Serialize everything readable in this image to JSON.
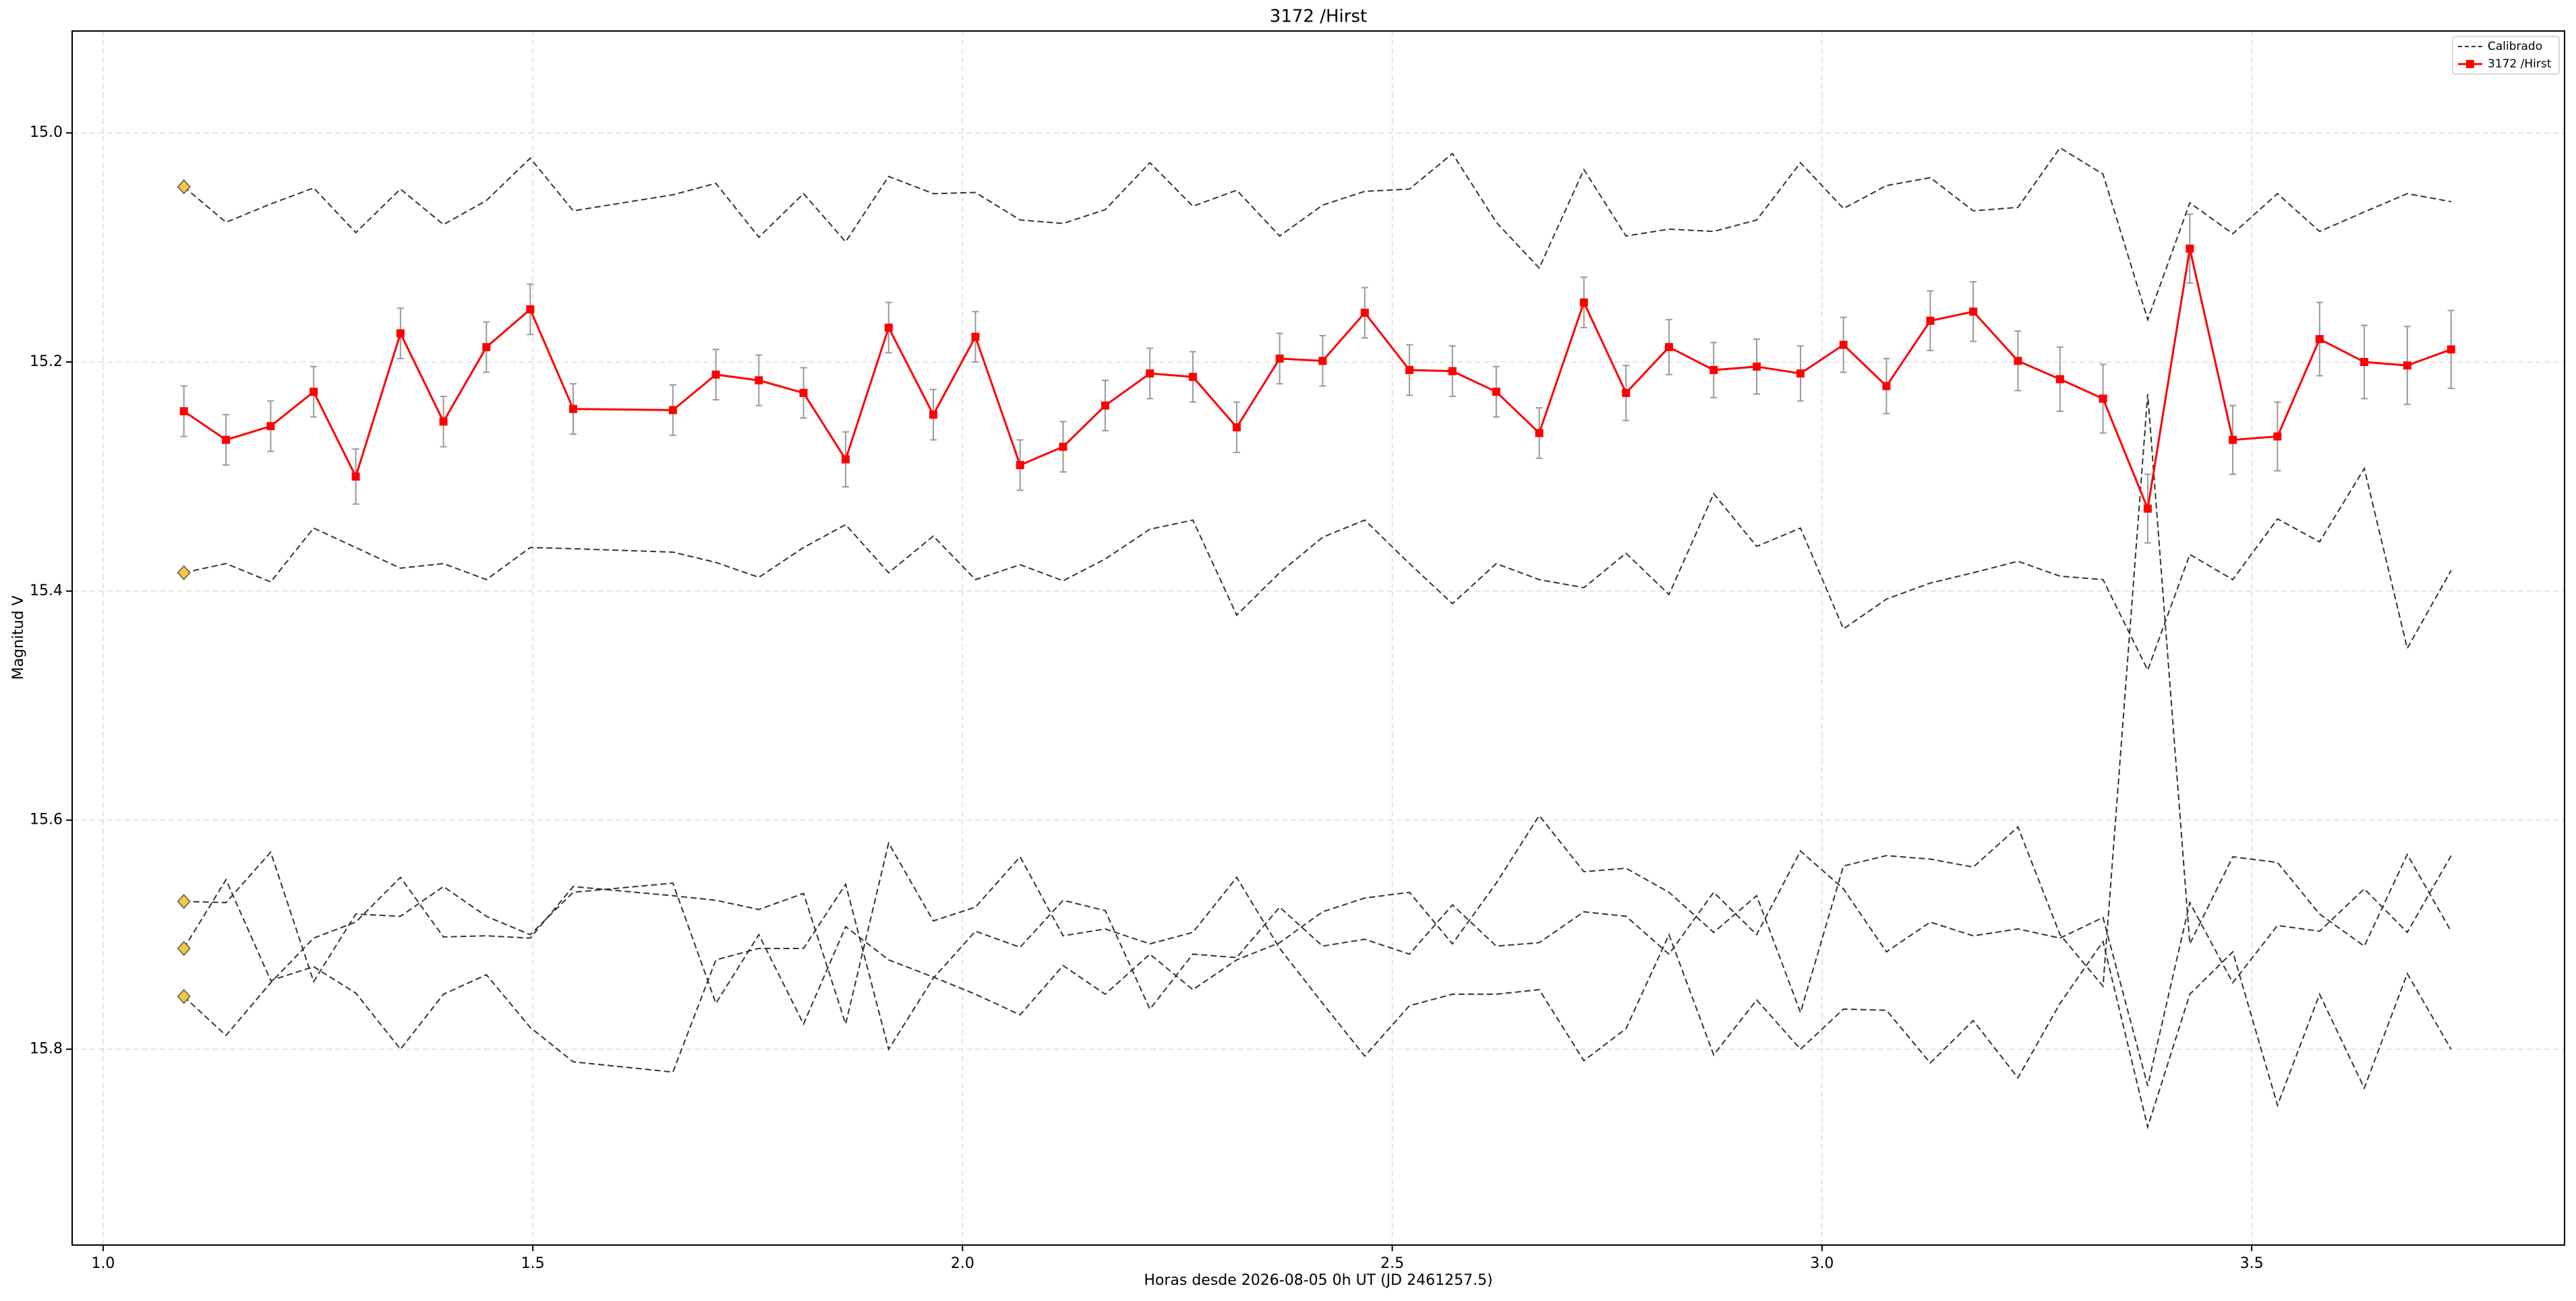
{
  "chart_data": {
    "type": "line",
    "title": "3172 /Hirst",
    "x_label": "Horas desde 2026-08-05 0h UT (JD 2461257.5)",
    "y_label": "Magnitud V",
    "xlim": [
      0.964,
      3.864
    ],
    "ylim": [
      14.911,
      15.971
    ],
    "invert_y": true,
    "grid": true,
    "legend": "upper right",
    "xticks": [
      {
        "value": 1.0,
        "label": "1.0"
      },
      1.5,
      {
        "value": 2.0,
        "label": "2.0"
      },
      2.5,
      {
        "value": 3.0,
        "label": "3.0"
      },
      3.5
    ],
    "yticks": [
      {
        "value": 15.0,
        "label": "15.0"
      },
      15.2,
      15.4,
      15.6,
      15.8
    ],
    "x": [
      1.094,
      1.143,
      1.195,
      1.245,
      1.294,
      1.346,
      1.396,
      1.446,
      1.497,
      1.547,
      1.663,
      1.713,
      1.763,
      1.815,
      1.864,
      1.914,
      1.966,
      2.015,
      2.067,
      2.117,
      2.166,
      2.218,
      2.268,
      2.319,
      2.369,
      2.419,
      2.468,
      2.52,
      2.57,
      2.621,
      2.671,
      2.723,
      2.772,
      2.822,
      2.874,
      2.924,
      2.975,
      3.025,
      3.075,
      3.126,
      3.176,
      3.228,
      3.277,
      3.327,
      3.379,
      3.428,
      3.478,
      3.53,
      3.579,
      3.631,
      3.681,
      3.732
    ],
    "series": [
      {
        "name": "Calibrado",
        "color": "#333333",
        "dashed": true,
        "lines": [
          [
            15.047,
            15.078,
            15.062,
            15.048,
            15.087,
            15.049,
            15.08,
            15.059,
            15.022,
            15.068,
            15.054,
            15.044,
            15.091,
            15.053,
            15.095,
            15.038,
            15.053,
            15.052,
            15.076,
            15.079,
            15.067,
            15.026,
            15.064,
            15.05,
            15.09,
            15.063,
            15.051,
            15.049,
            15.018,
            15.078,
            15.118,
            15.032,
            15.09,
            15.084,
            15.086,
            15.076,
            15.026,
            15.066,
            15.046,
            15.039,
            15.068,
            15.065,
            15.013,
            15.036,
            15.163,
            15.061,
            15.088,
            15.053,
            15.086,
            15.069,
            15.053,
            15.06
          ],
          [
            15.384,
            15.376,
            15.392,
            15.345,
            15.362,
            15.38,
            15.376,
            15.39,
            15.362,
            15.363,
            15.366,
            15.375,
            15.388,
            15.362,
            15.342,
            15.384,
            15.352,
            15.39,
            15.377,
            15.391,
            15.372,
            15.346,
            15.338,
            15.421,
            15.384,
            15.353,
            15.338,
            15.376,
            15.411,
            15.376,
            15.39,
            15.397,
            15.367,
            15.403,
            15.315,
            15.361,
            15.345,
            15.433,
            15.407,
            15.393,
            15.384,
            15.374,
            15.387,
            15.39,
            15.469,
            15.368,
            15.39,
            15.337,
            15.357,
            15.293,
            15.45,
            15.382
          ],
          [
            15.671,
            15.672,
            15.628,
            15.741,
            15.682,
            15.684,
            15.658,
            15.684,
            15.7,
            15.663,
            15.655,
            15.76,
            15.7,
            15.778,
            15.693,
            15.722,
            15.737,
            15.752,
            15.77,
            15.727,
            15.752,
            15.717,
            15.748,
            15.722,
            15.707,
            15.68,
            15.668,
            15.663,
            15.708,
            15.655,
            15.596,
            15.645,
            15.642,
            15.663,
            15.698,
            15.666,
            15.768,
            15.64,
            15.631,
            15.634,
            15.641,
            15.606,
            15.7,
            15.745,
            15.228,
            15.708,
            15.632,
            15.637,
            15.682,
            15.71,
            15.63,
            15.697
          ],
          [
            15.712,
            15.652,
            15.74,
            15.728,
            15.751,
            15.8,
            15.752,
            15.735,
            15.781,
            15.811,
            15.82,
            15.722,
            15.712,
            15.712,
            15.656,
            15.8,
            15.738,
            15.697,
            15.711,
            15.67,
            15.679,
            15.765,
            15.717,
            15.72,
            15.676,
            15.71,
            15.704,
            15.717,
            15.674,
            15.71,
            15.707,
            15.68,
            15.684,
            15.717,
            15.663,
            15.7,
            15.627,
            15.66,
            15.715,
            15.689,
            15.701,
            15.695,
            15.703,
            15.685,
            15.832,
            15.672,
            15.742,
            15.692,
            15.697,
            15.66,
            15.698,
            15.631
          ],
          [
            15.754,
            15.788,
            15.742,
            15.703,
            15.689,
            15.65,
            15.702,
            15.701,
            15.703,
            15.658,
            15.666,
            15.67,
            15.678,
            15.664,
            15.778,
            15.62,
            15.688,
            15.676,
            15.632,
            15.701,
            15.695,
            15.708,
            15.698,
            15.65,
            15.712,
            15.76,
            15.806,
            15.762,
            15.752,
            15.752,
            15.748,
            15.81,
            15.782,
            15.7,
            15.805,
            15.757,
            15.8,
            15.765,
            15.766,
            15.812,
            15.775,
            15.825,
            15.76,
            15.706,
            15.868,
            15.752,
            15.715,
            15.849,
            15.752,
            15.834,
            15.734,
            15.8
          ]
        ]
      },
      {
        "name": "3172 /Hirst",
        "color": "#ff0000",
        "values": [
          15.243,
          15.268,
          15.256,
          15.226,
          15.3,
          15.175,
          15.252,
          15.187,
          15.154,
          15.241,
          15.242,
          15.211,
          15.216,
          15.227,
          15.285,
          15.17,
          15.246,
          15.178,
          15.29,
          15.274,
          15.238,
          15.21,
          15.213,
          15.257,
          15.197,
          15.199,
          15.157,
          15.207,
          15.208,
          15.226,
          15.262,
          15.148,
          15.227,
          15.187,
          15.207,
          15.204,
          15.21,
          15.185,
          15.221,
          15.164,
          15.156,
          15.199,
          15.215,
          15.232,
          15.328,
          15.101,
          15.268,
          15.265,
          15.18,
          15.2,
          15.203,
          15.189
        ],
        "errors": [
          0.022,
          0.022,
          0.022,
          0.022,
          0.024,
          0.022,
          0.022,
          0.022,
          0.022,
          0.022,
          0.022,
          0.022,
          0.022,
          0.022,
          0.024,
          0.022,
          0.022,
          0.022,
          0.022,
          0.022,
          0.022,
          0.022,
          0.022,
          0.022,
          0.022,
          0.022,
          0.022,
          0.022,
          0.022,
          0.022,
          0.022,
          0.022,
          0.024,
          0.024,
          0.024,
          0.024,
          0.024,
          0.024,
          0.024,
          0.026,
          0.026,
          0.026,
          0.028,
          0.03,
          0.03,
          0.03,
          0.03,
          0.03,
          0.032,
          0.032,
          0.034,
          0.034
        ]
      }
    ],
    "markers": {
      "x": 1.094,
      "color": "#f5c842",
      "values": [
        15.047,
        15.384,
        15.671,
        15.712,
        15.754
      ]
    }
  }
}
